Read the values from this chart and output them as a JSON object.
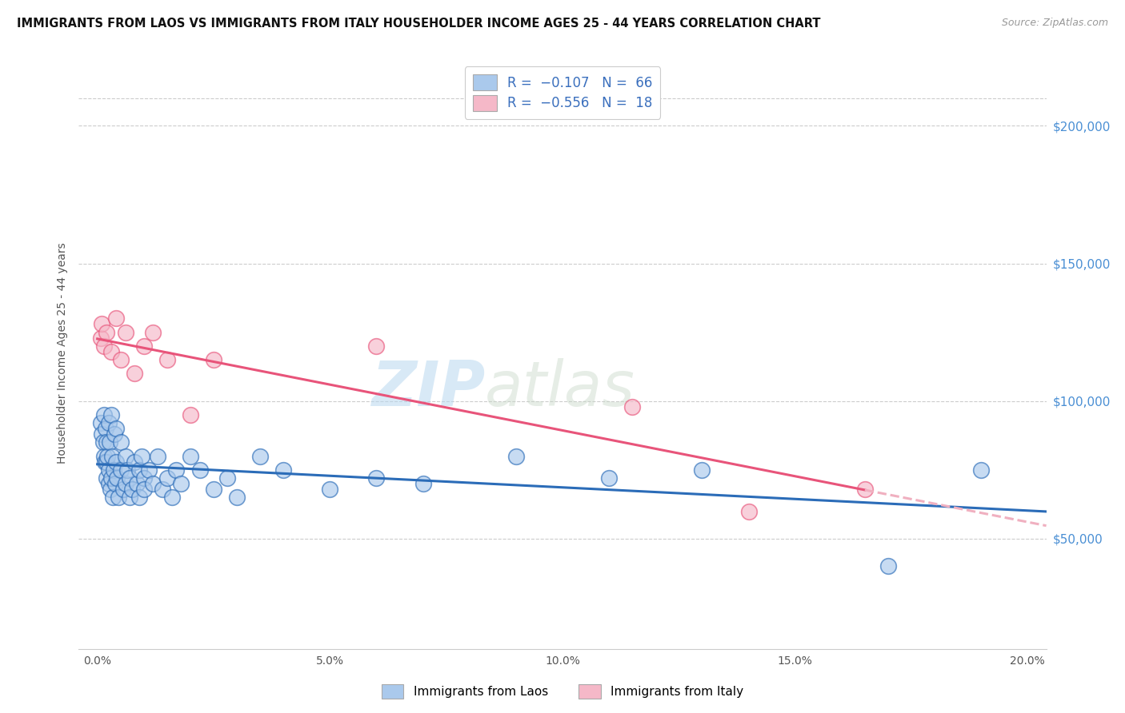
{
  "title": "IMMIGRANTS FROM LAOS VS IMMIGRANTS FROM ITALY HOUSEHOLDER INCOME AGES 25 - 44 YEARS CORRELATION CHART",
  "source": "Source: ZipAtlas.com",
  "ylabel": "Householder Income Ages 25 - 44 years",
  "xlabel_ticks": [
    "0.0%",
    "5.0%",
    "10.0%",
    "15.0%",
    "20.0%"
  ],
  "xlabel_vals": [
    0.0,
    0.05,
    0.1,
    0.15,
    0.2
  ],
  "ytick_labels": [
    "$50,000",
    "$100,000",
    "$150,000",
    "$200,000"
  ],
  "ytick_vals": [
    50000,
    100000,
    150000,
    200000
  ],
  "xlim": [
    -0.004,
    0.204
  ],
  "ylim": [
    10000,
    225000
  ],
  "laos_R": "-0.107",
  "laos_N": "66",
  "italy_R": "-0.556",
  "italy_N": "18",
  "legend_label_laos": "Immigrants from Laos",
  "legend_label_italy": "Immigrants from Italy",
  "color_laos": "#aac9ec",
  "color_laos_line": "#2b6cb8",
  "color_italy": "#f5b8c8",
  "color_italy_line": "#e8547a",
  "color_italy_line_dashed": "#f0b0c0",
  "watermark_zip": "ZIP",
  "watermark_atlas": "atlas",
  "laos_x": [
    0.0008,
    0.001,
    0.0012,
    0.0014,
    0.0015,
    0.0016,
    0.0018,
    0.002,
    0.002,
    0.002,
    0.0022,
    0.0024,
    0.0025,
    0.0025,
    0.0026,
    0.0028,
    0.003,
    0.003,
    0.0032,
    0.0034,
    0.0035,
    0.0036,
    0.0038,
    0.004,
    0.004,
    0.0042,
    0.0045,
    0.005,
    0.005,
    0.0055,
    0.006,
    0.006,
    0.0065,
    0.007,
    0.007,
    0.0075,
    0.008,
    0.0085,
    0.009,
    0.009,
    0.0095,
    0.01,
    0.01,
    0.011,
    0.012,
    0.013,
    0.014,
    0.015,
    0.016,
    0.017,
    0.018,
    0.02,
    0.022,
    0.025,
    0.028,
    0.03,
    0.035,
    0.04,
    0.05,
    0.06,
    0.07,
    0.09,
    0.11,
    0.13,
    0.17,
    0.19
  ],
  "laos_y": [
    92000,
    88000,
    85000,
    80000,
    95000,
    78000,
    90000,
    85000,
    78000,
    72000,
    80000,
    75000,
    92000,
    70000,
    85000,
    68000,
    95000,
    72000,
    80000,
    65000,
    75000,
    88000,
    70000,
    90000,
    78000,
    72000,
    65000,
    85000,
    75000,
    68000,
    80000,
    70000,
    75000,
    65000,
    72000,
    68000,
    78000,
    70000,
    75000,
    65000,
    80000,
    72000,
    68000,
    75000,
    70000,
    80000,
    68000,
    72000,
    65000,
    75000,
    70000,
    80000,
    75000,
    68000,
    72000,
    65000,
    80000,
    75000,
    68000,
    72000,
    70000,
    80000,
    72000,
    75000,
    40000,
    75000
  ],
  "italy_x": [
    0.0008,
    0.001,
    0.0015,
    0.002,
    0.003,
    0.004,
    0.005,
    0.006,
    0.008,
    0.01,
    0.012,
    0.015,
    0.02,
    0.025,
    0.06,
    0.115,
    0.14,
    0.165
  ],
  "italy_y": [
    123000,
    128000,
    120000,
    125000,
    118000,
    130000,
    115000,
    125000,
    110000,
    120000,
    125000,
    115000,
    95000,
    115000,
    120000,
    98000,
    60000,
    68000
  ]
}
